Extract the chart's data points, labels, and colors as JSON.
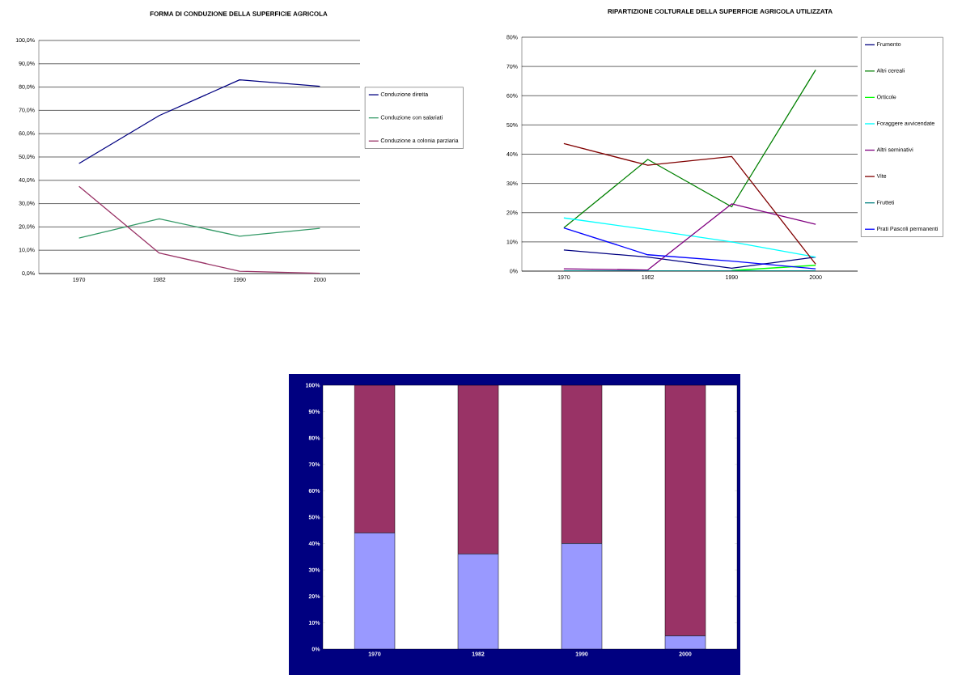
{
  "chart_data": [
    {
      "type": "line",
      "title": "FORMA DI CONDUZIONE DELLA SUPERFICIE AGRICOLA",
      "categories": [
        "1970",
        "1982",
        "1990",
        "2000"
      ],
      "series": [
        {
          "name": "Conduzione diretta",
          "color": "#000080",
          "values": [
            47.2,
            67.8,
            83.1,
            80.3
          ]
        },
        {
          "name": "Conduzione con salariati",
          "color": "#339966",
          "values": [
            15.2,
            23.5,
            16.0,
            19.4
          ]
        },
        {
          "name": "Conduzione a colonia parziaria",
          "color": "#993366",
          "values": [
            37.4,
            8.8,
            1.0,
            0.1
          ]
        }
      ],
      "ylim": [
        0,
        100
      ],
      "yticks": [
        {
          "value": 0,
          "label": "0,0%"
        },
        {
          "value": 10,
          "label": "10,0%"
        },
        {
          "value": 20,
          "label": "20,0%"
        },
        {
          "value": 30,
          "label": "30,0%"
        },
        {
          "value": 40,
          "label": "40,0%"
        },
        {
          "value": 50,
          "label": "50,0%"
        },
        {
          "value": 60,
          "label": "60,0%"
        },
        {
          "value": 70,
          "label": "70,0%"
        },
        {
          "value": 80,
          "label": "80,0%"
        },
        {
          "value": 90,
          "label": "90,0%"
        },
        {
          "value": 100,
          "label": "100,0%"
        }
      ],
      "grid": "y",
      "legend": "right"
    },
    {
      "type": "line",
      "title": "RIPARTIZIONE COLTURALE DELLA SUPERFICIE AGRICOLA UTILIZZATA",
      "categories": [
        "1970",
        "1982",
        "1990",
        "2000"
      ],
      "series": [
        {
          "name": "Frumento",
          "color": "#000080",
          "values": [
            7.2,
            4.8,
            1.0,
            4.8
          ]
        },
        {
          "name": "Altri cereali",
          "color": "#008000",
          "values": [
            14.8,
            38.2,
            22.0,
            68.8
          ]
        },
        {
          "name": "Orticole",
          "color": "#00ff00",
          "values": [
            null,
            null,
            0.2,
            2.0
          ]
        },
        {
          "name": "Foraggere avvicendate",
          "color": "#00ffff",
          "values": [
            18.2,
            14.2,
            10.0,
            4.8
          ]
        },
        {
          "name": "Altri seminativi",
          "color": "#800080",
          "values": [
            0.8,
            0.4,
            23.0,
            16.0
          ]
        },
        {
          "name": "Vite",
          "color": "#800000",
          "values": [
            43.6,
            36.2,
            39.2,
            2.4
          ]
        },
        {
          "name": "Frutteti",
          "color": "#008080",
          "values": [
            0.1,
            0.1,
            0.1,
            0.1
          ]
        },
        {
          "name": "Prati Pascoli permanenti",
          "color": "#0000ff",
          "values": [
            14.8,
            5.6,
            3.4,
            0.8
          ]
        }
      ],
      "ylim": [
        0,
        80
      ],
      "yticks": [
        {
          "value": 0,
          "label": "0%"
        },
        {
          "value": 10,
          "label": "10%"
        },
        {
          "value": 20,
          "label": "20%"
        },
        {
          "value": 30,
          "label": "30%"
        },
        {
          "value": 40,
          "label": "40%"
        },
        {
          "value": 50,
          "label": "50%"
        },
        {
          "value": 60,
          "label": "60%"
        },
        {
          "value": 70,
          "label": "70%"
        },
        {
          "value": 80,
          "label": "80%"
        }
      ],
      "grid": "y",
      "legend": "right"
    },
    {
      "type": "bar",
      "stacked": true,
      "categories": [
        "1970",
        "1982",
        "1990",
        "2000"
      ],
      "series": [
        {
          "color": "#9999ff",
          "values": [
            44,
            36,
            40,
            5
          ]
        },
        {
          "color": "#993366",
          "values": [
            56,
            64,
            60,
            95
          ]
        }
      ],
      "ylim": [
        0,
        100
      ],
      "yticks": [
        {
          "value": 0,
          "label": "0%"
        },
        {
          "value": 10,
          "label": "10%"
        },
        {
          "value": 20,
          "label": "20%"
        },
        {
          "value": 30,
          "label": "30%"
        },
        {
          "value": 40,
          "label": "40%"
        },
        {
          "value": 50,
          "label": "50%"
        },
        {
          "value": 60,
          "label": "60%"
        },
        {
          "value": 70,
          "label": "70%"
        },
        {
          "value": 80,
          "label": "80%"
        },
        {
          "value": 90,
          "label": "90%"
        },
        {
          "value": 100,
          "label": "100%"
        }
      ]
    }
  ]
}
